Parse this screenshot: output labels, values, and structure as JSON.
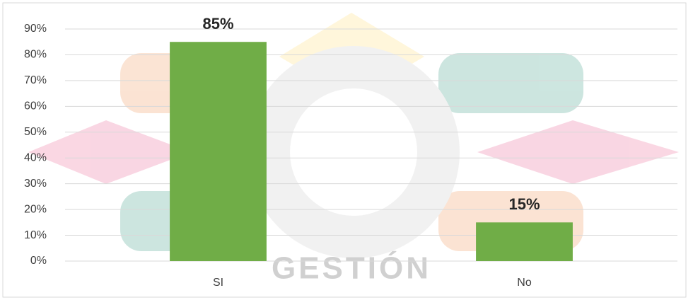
{
  "chart_data": {
    "type": "bar",
    "categories": [
      "SI",
      "No"
    ],
    "values": [
      85,
      15
    ],
    "value_labels": [
      "85%",
      "15%"
    ],
    "color": "#70ad47",
    "ylim": [
      0,
      90
    ],
    "yticks": [
      {
        "value": 0,
        "label": "0%"
      },
      {
        "value": 10,
        "label": "10%"
      },
      {
        "value": 20,
        "label": "20%"
      },
      {
        "value": 30,
        "label": "30%"
      },
      {
        "value": 40,
        "label": "40%"
      },
      {
        "value": 50,
        "label": "50%"
      },
      {
        "value": 60,
        "label": "60%"
      },
      {
        "value": 70,
        "label": "70%"
      },
      {
        "value": 80,
        "label": "80%"
      },
      {
        "value": 90,
        "label": "90%"
      }
    ],
    "grid": true,
    "watermark": "GESTIÓN"
  }
}
